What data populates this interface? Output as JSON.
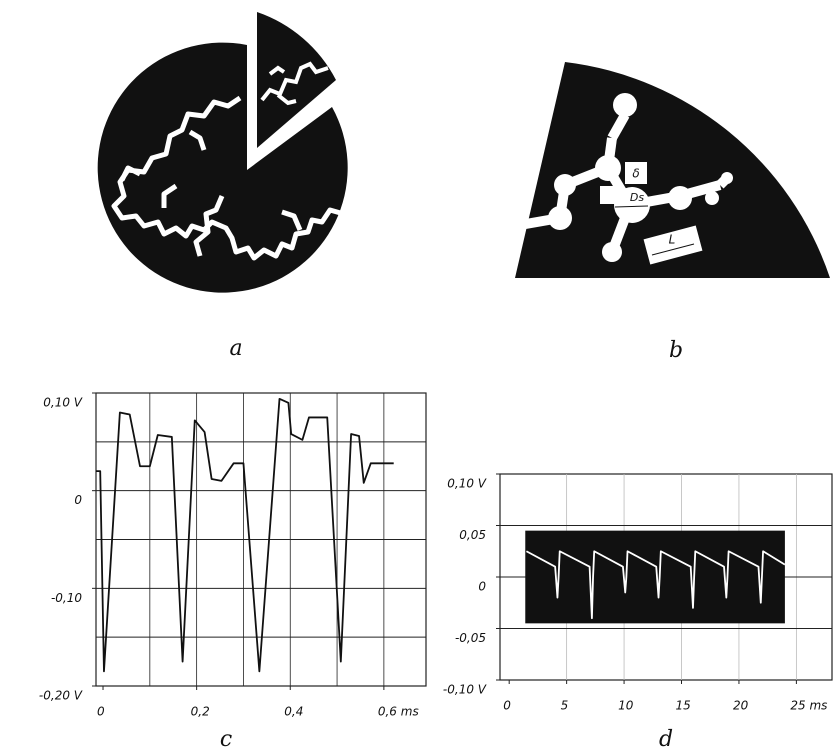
{
  "figure": {
    "panel_a": {
      "label": "a"
    },
    "panel_b": {
      "label": "b",
      "diameter_label": "Ds",
      "gap_label": "δ",
      "length_label": "L"
    }
  },
  "chart_data": [
    {
      "type": "line",
      "label": "c",
      "xlim": [
        -0.015,
        0.69
      ],
      "ylim": [
        -0.2,
        0.1
      ],
      "xticks": [
        0,
        {
          "value": 0.2,
          "label": "0,2"
        },
        {
          "value": 0.4,
          "label": "0,4"
        },
        {
          "value": 0.6,
          "label": "0,6 ms"
        }
      ],
      "yticks": [
        {
          "value": 0.1,
          "label": "0,10 V"
        },
        0,
        {
          "value": -0.1,
          "label": "-0,10"
        },
        {
          "value": -0.2,
          "label": "-0,20 V"
        }
      ],
      "xgrid": [
        0.1,
        0.2,
        0.3,
        0.4,
        0.5,
        0.6
      ],
      "ygrid": [
        -0.15,
        -0.1,
        -0.05,
        0,
        0.05
      ],
      "grid_color": "#222222",
      "series": [
        {
          "color": "#111111",
          "x": [
            -0.015,
            -0.006,
            0.002,
            0.036,
            0.057,
            0.079,
            0.1,
            0.117,
            0.147,
            0.17,
            0.196,
            0.217,
            0.232,
            0.253,
            0.279,
            0.3,
            0.334,
            0.377,
            0.396,
            0.402,
            0.426,
            0.44,
            0.479,
            0.508,
            0.53,
            0.547,
            0.557,
            0.572,
            0.621
          ],
          "values": [
            0.02,
            0.02,
            -0.185,
            0.08,
            0.078,
            0.025,
            0.025,
            0.057,
            0.055,
            -0.175,
            0.072,
            0.06,
            0.012,
            0.01,
            0.028,
            0.028,
            -0.185,
            0.094,
            0.09,
            0.058,
            0.052,
            0.075,
            0.075,
            -0.175,
            0.058,
            0.056,
            0.008,
            0.028,
            0.028
          ]
        }
      ]
    },
    {
      "type": "line",
      "label": "d",
      "xlim": [
        -0.8,
        28.1
      ],
      "ylim": [
        -0.1,
        0.1
      ],
      "xticks": [
        0,
        5,
        10,
        15,
        20,
        {
          "value": 25,
          "label": "25 ms"
        }
      ],
      "yticks": [
        {
          "value": 0.1,
          "label": "0,10 V"
        },
        {
          "value": 0.05,
          "label": "0,05"
        },
        0,
        {
          "value": -0.05,
          "label": "-0,05"
        },
        {
          "value": -0.1,
          "label": "-0,10 V"
        }
      ],
      "xgrid": [
        5,
        10,
        15,
        20,
        25
      ],
      "ygrid": [
        -0.05,
        0,
        0.05
      ],
      "grid_color": "#222222",
      "xgrid_color": "#bbbbbb",
      "band": {
        "x": [
          1.4,
          24
        ],
        "upper": 0.045,
        "lower": -0.045,
        "color": "#111111"
      },
      "series": [
        {
          "color": "#ffffff",
          "x": [
            1.5,
            4.0,
            4.2,
            4.3,
            4.4,
            7.0,
            7.2,
            7.3,
            7.4,
            9.9,
            10.1,
            10.2,
            10.3,
            12.8,
            13.0,
            13.1,
            13.2,
            15.8,
            16.0,
            16.1,
            16.2,
            18.7,
            18.9,
            19.0,
            19.1,
            21.7,
            21.9,
            22.0,
            22.1,
            24.0
          ],
          "values": [
            0.025,
            0.01,
            -0.02,
            0,
            0.025,
            0.01,
            -0.04,
            0,
            0.025,
            0.01,
            -0.015,
            0,
            0.025,
            0.01,
            -0.02,
            0,
            0.025,
            0.01,
            -0.03,
            0,
            0.025,
            0.01,
            -0.02,
            0,
            0.025,
            0.01,
            -0.025,
            0,
            0.025,
            0.012
          ]
        }
      ]
    }
  ]
}
